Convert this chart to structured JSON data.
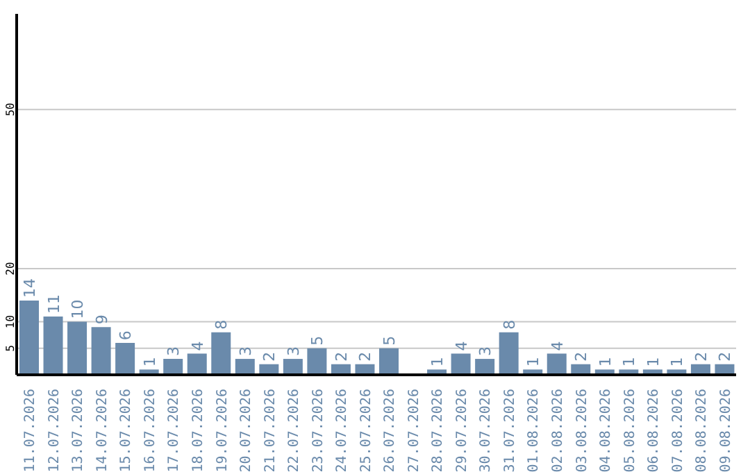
{
  "chart_data": {
    "type": "bar",
    "categories": [
      "11.07.2026",
      "12.07.2026",
      "13.07.2026",
      "14.07.2026",
      "15.07.2026",
      "16.07.2026",
      "17.07.2026",
      "18.07.2026",
      "19.07.2026",
      "20.07.2026",
      "21.07.2026",
      "22.07.2026",
      "23.07.2026",
      "24.07.2026",
      "25.07.2026",
      "26.07.2026",
      "27.07.2026",
      "28.07.2026",
      "29.07.2026",
      "30.07.2026",
      "31.07.2026",
      "01.08.2026",
      "02.08.2026",
      "03.08.2026",
      "04.08.2026",
      "05.08.2026",
      "06.08.2026",
      "07.08.2026",
      "08.08.2026",
      "09.08.2026"
    ],
    "values": [
      14,
      11,
      10,
      9,
      6,
      1,
      3,
      4,
      8,
      3,
      2,
      3,
      5,
      2,
      2,
      5,
      null,
      1,
      4,
      3,
      8,
      1,
      4,
      2,
      1,
      1,
      1,
      1,
      2,
      2
    ],
    "color": "#6a8aab",
    "ylim": [
      0,
      68
    ],
    "yticks": [
      5,
      10,
      20,
      50
    ],
    "grid": "y",
    "data_labels": true
  }
}
